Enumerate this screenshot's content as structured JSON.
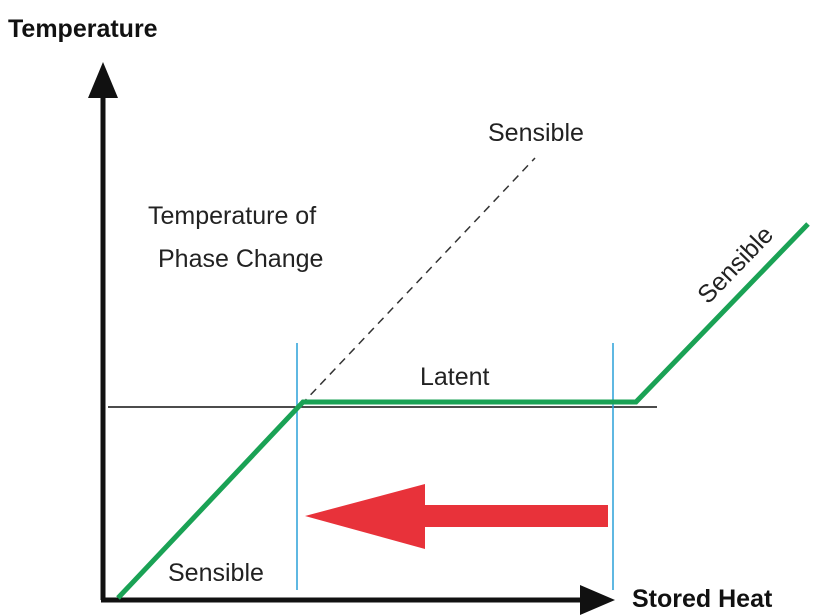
{
  "axes": {
    "y_label": "Temperature",
    "x_label": "Stored Heat"
  },
  "labels": {
    "sensible_dashed": "Sensible",
    "phase_change": [
      "Temperature of",
      "Phase Change"
    ],
    "latent": "Latent",
    "sensible_low": "Sensible",
    "sensible_high": "Sensible"
  }
}
